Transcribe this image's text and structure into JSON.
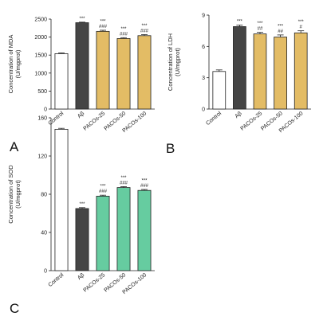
{
  "chart_data": [
    {
      "panel": "A",
      "type": "bar",
      "categories": [
        "Control",
        "Aβ",
        "PACOs-25",
        "PACOs-50",
        "PACOs-100"
      ],
      "values": [
        1540,
        2400,
        2160,
        1960,
        2040
      ],
      "errors": [
        20,
        15,
        30,
        25,
        30
      ],
      "significance": [
        [],
        [
          "***"
        ],
        [
          "***",
          "###"
        ],
        [
          "***",
          "###"
        ],
        [
          "***",
          "###"
        ]
      ],
      "bar_colors": [
        "#ffffff",
        "#454545",
        "#e3bc65",
        "#e3bc65",
        "#e3bc65"
      ],
      "ylabel": [
        "Concentration of MDA",
        "(U/mgprot)"
      ],
      "ylim": [
        0,
        2500
      ],
      "yticks": [
        0,
        500,
        1000,
        1500,
        2000,
        2500
      ]
    },
    {
      "panel": "B",
      "type": "bar",
      "categories": [
        "Control",
        "Aβ",
        "PACOs-25",
        "PACOs-50",
        "PACOs-100"
      ],
      "values": [
        3.6,
        7.9,
        7.2,
        6.9,
        7.3
      ],
      "errors": [
        0.15,
        0.15,
        0.15,
        0.2,
        0.2
      ],
      "significance": [
        [],
        [
          "***"
        ],
        [
          "***",
          "##"
        ],
        [
          "***",
          "##"
        ],
        [
          "***",
          "#"
        ]
      ],
      "bar_colors": [
        "#ffffff",
        "#454545",
        "#e3bc65",
        "#e3bc65",
        "#e3bc65"
      ],
      "ylabel": [
        "Concentration of LDH",
        "(U/mgprot)"
      ],
      "ylim": [
        0,
        9
      ],
      "yticks": [
        0,
        3,
        6,
        9
      ]
    },
    {
      "panel": "C",
      "type": "bar",
      "categories": [
        "Control",
        "Aβ",
        "PACOs-25",
        "PACOs-50",
        "PACOs-100"
      ],
      "values": [
        148,
        65,
        78,
        87,
        84
      ],
      "errors": [
        1,
        1,
        1,
        1,
        1
      ],
      "significance": [
        [],
        [
          "***"
        ],
        [
          "***",
          "###"
        ],
        [
          "***",
          "###"
        ],
        [
          "***",
          "###"
        ]
      ],
      "bar_colors": [
        "#ffffff",
        "#454545",
        "#66cca0",
        "#66cca0",
        "#66cca0"
      ],
      "ylabel": [
        "Concentration of SOD",
        "(U/mgprot)"
      ],
      "ylim": [
        0,
        160
      ],
      "yticks": [
        0,
        40,
        80,
        120,
        160
      ]
    }
  ]
}
